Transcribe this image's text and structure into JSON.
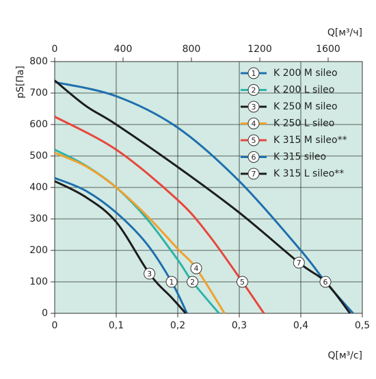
{
  "chart_data": {
    "type": "line",
    "ylabel": "pS[Па]",
    "xlabel": "Q[м³/с]",
    "x2label": "Q[м³/ч]",
    "xlim": [
      0,
      0.5
    ],
    "ylim": [
      0,
      800
    ],
    "x2lim": [
      0,
      1800
    ],
    "xticks": [
      0,
      {
        "value": 0.1,
        "label": "0,1"
      },
      {
        "value": 0.2,
        "label": "0,2"
      },
      {
        "value": 0.3,
        "label": "0,3"
      },
      {
        "value": 0.4,
        "label": "0,4"
      },
      {
        "value": 0.5,
        "label": "0,5"
      }
    ],
    "x2ticks": [
      0,
      400,
      800,
      1200,
      1600
    ],
    "yticks": [
      0,
      100,
      200,
      300,
      400,
      500,
      600,
      700,
      800
    ],
    "grid": true,
    "legend": "upper right",
    "background": "#d2eae3",
    "series": [
      {
        "name": "K 200 M sileo",
        "color": "#1f6fae",
        "marker_label": "1",
        "marker_x": 0.19,
        "marker_y": 100,
        "x": [
          0,
          0.05,
          0.1,
          0.15,
          0.19,
          0.215
        ],
        "values": [
          430,
          390,
          320,
          220,
          100,
          0
        ]
      },
      {
        "name": "K 200 L sileo",
        "color": "#2fb3a8",
        "marker_label": "2",
        "marker_x": 0.224,
        "marker_y": 100,
        "x": [
          0,
          0.05,
          0.1,
          0.15,
          0.2,
          0.224,
          0.267
        ],
        "values": [
          520,
          470,
          400,
          300,
          170,
          100,
          0
        ]
      },
      {
        "name": "K 250 M sileo",
        "color": "#1c1c1c",
        "marker_label": "3",
        "marker_x": 0.154,
        "marker_y": 126,
        "x": [
          0,
          0.05,
          0.1,
          0.154,
          0.19,
          0.213
        ],
        "values": [
          420,
          370,
          290,
          126,
          50,
          0
        ]
      },
      {
        "name": "K 250 L sileo",
        "color": "#f0a030",
        "marker_label": "4",
        "marker_x": 0.23,
        "marker_y": 143,
        "x": [
          0,
          0.05,
          0.1,
          0.15,
          0.2,
          0.23,
          0.276
        ],
        "values": [
          510,
          468,
          400,
          310,
          205,
          143,
          0
        ]
      },
      {
        "name": "K 315 M sileo**",
        "color": "#e8463c",
        "marker_label": "5",
        "marker_x": 0.305,
        "marker_y": 100,
        "x": [
          0,
          0.1,
          0.2,
          0.25,
          0.305,
          0.34
        ],
        "values": [
          625,
          520,
          360,
          250,
          100,
          0
        ]
      },
      {
        "name": "K 315 sileo",
        "color": "#1f6fae",
        "marker_label": "6",
        "marker_x": 0.44,
        "marker_y": 100,
        "x": [
          0,
          0.1,
          0.2,
          0.3,
          0.4,
          0.44,
          0.485
        ],
        "values": [
          735,
          690,
          590,
          420,
          200,
          100,
          0
        ]
      },
      {
        "name": "K 315 L sileo**",
        "color": "#1c1c1c",
        "marker_label": "7",
        "marker_x": 0.397,
        "marker_y": 161,
        "x": [
          0,
          0.05,
          0.1,
          0.2,
          0.3,
          0.397,
          0.44,
          0.48
        ],
        "values": [
          740,
          660,
          600,
          465,
          320,
          161,
          100,
          0
        ]
      }
    ]
  }
}
